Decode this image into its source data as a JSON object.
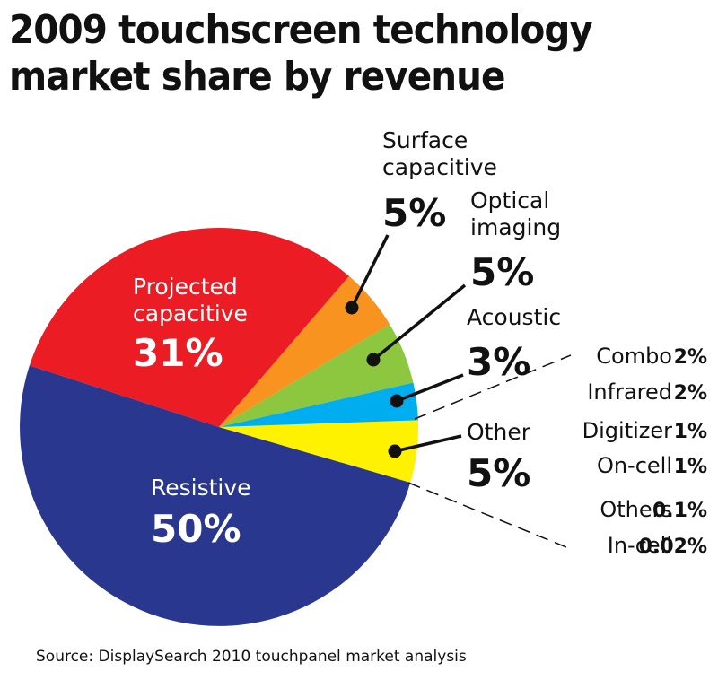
{
  "title_lines": [
    "2009 touchscreen technology",
    "market share by revenue"
  ],
  "source": "Source: DisplaySearch 2010 touchpanel market analysis",
  "chart_data": {
    "type": "pie",
    "title": "2009 touchscreen technology market share by revenue",
    "slices": [
      {
        "label": "Resistive",
        "value": 50,
        "value_label": "50%",
        "color": "#29378f"
      },
      {
        "label": "Projected capacitive",
        "value": 31,
        "value_label": "31%",
        "color": "#ec1c24"
      },
      {
        "label": "Surface capacitive",
        "value": 5,
        "value_label": "5%",
        "color": "#f7931e"
      },
      {
        "label": "Optical imaging",
        "value": 5,
        "value_label": "5%",
        "color": "#8dc63f"
      },
      {
        "label": "Acoustic",
        "value": 3,
        "value_label": "3%",
        "color": "#00aeef"
      },
      {
        "label": "Other",
        "value": 5,
        "value_label": "5%",
        "color": "#fff200"
      }
    ],
    "other_breakdown": [
      {
        "label": "Combo",
        "value_label": "2%"
      },
      {
        "label": "Infrared",
        "value_label": "2%"
      },
      {
        "label": "Digitizer",
        "value_label": "1%"
      },
      {
        "label": "On-cell",
        "value_label": "1%"
      },
      {
        "label": "Others",
        "value_label": "0.1%"
      },
      {
        "label": "In-cell",
        "value_label": "0.02%"
      }
    ]
  }
}
